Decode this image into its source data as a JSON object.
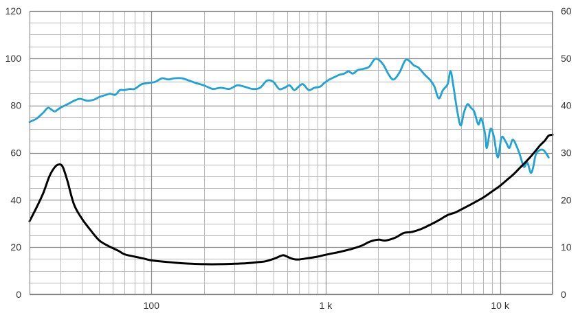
{
  "chart_data": {
    "type": "line",
    "x_scale": "log",
    "xlim": [
      20,
      20000
    ],
    "ylim_left": [
      0,
      120
    ],
    "ylim_right": [
      0,
      60
    ],
    "grid": true,
    "x_tick_labels": [
      {
        "x": 100,
        "label": "100"
      },
      {
        "x": 1000,
        "label": "1 k"
      },
      {
        "x": 10000,
        "label": "10 k"
      }
    ],
    "y_left_ticks": [
      0,
      20,
      40,
      60,
      80,
      100,
      120
    ],
    "y_right_ticks": [
      0,
      10,
      20,
      30,
      40,
      50,
      60
    ],
    "series": [
      {
        "axis": "left",
        "color": "#1fa3d6",
        "points": [
          [
            20,
            73
          ],
          [
            22,
            74.5
          ],
          [
            24,
            77
          ],
          [
            25.5,
            79
          ],
          [
            27,
            78
          ],
          [
            28,
            77.5
          ],
          [
            30,
            79
          ],
          [
            33,
            80.5
          ],
          [
            36,
            82
          ],
          [
            39,
            82.8
          ],
          [
            43,
            82
          ],
          [
            47,
            82.5
          ],
          [
            50,
            83.5
          ],
          [
            55,
            84.5
          ],
          [
            58,
            85
          ],
          [
            62,
            84.5
          ],
          [
            66,
            86.5
          ],
          [
            70,
            86.5
          ],
          [
            75,
            87
          ],
          [
            80,
            87
          ],
          [
            88,
            89
          ],
          [
            95,
            89.5
          ],
          [
            105,
            90
          ],
          [
            115,
            91.5
          ],
          [
            125,
            91
          ],
          [
            135,
            91.5
          ],
          [
            150,
            91.5
          ],
          [
            165,
            90.5
          ],
          [
            180,
            89.5
          ],
          [
            200,
            88.5
          ],
          [
            225,
            87
          ],
          [
            250,
            87.5
          ],
          [
            280,
            87
          ],
          [
            310,
            88.5
          ],
          [
            340,
            88
          ],
          [
            380,
            87
          ],
          [
            420,
            87.5
          ],
          [
            460,
            90.5
          ],
          [
            500,
            90
          ],
          [
            540,
            87
          ],
          [
            580,
            87.5
          ],
          [
            620,
            88.5
          ],
          [
            660,
            86.5
          ],
          [
            700,
            88
          ],
          [
            740,
            89
          ],
          [
            800,
            86.5
          ],
          [
            860,
            87.5
          ],
          [
            930,
            88
          ],
          [
            980,
            89.5
          ],
          [
            1050,
            91
          ],
          [
            1120,
            92
          ],
          [
            1200,
            93
          ],
          [
            1280,
            93.5
          ],
          [
            1350,
            94.5
          ],
          [
            1430,
            93.5
          ],
          [
            1530,
            95
          ],
          [
            1650,
            95.5
          ],
          [
            1780,
            96.5
          ],
          [
            1900,
            99.5
          ],
          [
            2000,
            99.5
          ],
          [
            2150,
            97
          ],
          [
            2300,
            93
          ],
          [
            2450,
            91
          ],
          [
            2650,
            94
          ],
          [
            2850,
            99
          ],
          [
            3000,
            99
          ],
          [
            3200,
            97
          ],
          [
            3400,
            96
          ],
          [
            3700,
            93
          ],
          [
            4000,
            90.5
          ],
          [
            4200,
            88
          ],
          [
            4450,
            83
          ],
          [
            4700,
            86.5
          ],
          [
            5000,
            89
          ],
          [
            5200,
            94.5
          ],
          [
            5400,
            88
          ],
          [
            5700,
            77
          ],
          [
            5950,
            71.5
          ],
          [
            6200,
            77
          ],
          [
            6500,
            80.5
          ],
          [
            6800,
            79
          ],
          [
            7100,
            77.5
          ],
          [
            7500,
            72
          ],
          [
            7800,
            74.5
          ],
          [
            8200,
            68
          ],
          [
            8400,
            62
          ],
          [
            8800,
            70
          ],
          [
            9200,
            67
          ],
          [
            9700,
            58
          ],
          [
            10200,
            66.5
          ],
          [
            10800,
            64.5
          ],
          [
            11300,
            62
          ],
          [
            11800,
            65.5
          ],
          [
            12400,
            63
          ],
          [
            13000,
            59
          ],
          [
            13700,
            54
          ],
          [
            14300,
            56
          ],
          [
            15000,
            51.5
          ],
          [
            15500,
            54
          ],
          [
            16000,
            59
          ],
          [
            16800,
            61
          ],
          [
            17800,
            61
          ],
          [
            19000,
            58
          ]
        ]
      },
      {
        "axis": "right",
        "color": "#000000",
        "points": [
          [
            20,
            15.5
          ],
          [
            22,
            18.5
          ],
          [
            24,
            21.5
          ],
          [
            26,
            25
          ],
          [
            28,
            27
          ],
          [
            29.5,
            27.5
          ],
          [
            31,
            27
          ],
          [
            33,
            24
          ],
          [
            36,
            19
          ],
          [
            40,
            16
          ],
          [
            45,
            13.5
          ],
          [
            50,
            11.5
          ],
          [
            55,
            10.5
          ],
          [
            60,
            9.8
          ],
          [
            65,
            9.2
          ],
          [
            70,
            8.5
          ],
          [
            80,
            8
          ],
          [
            90,
            7.6
          ],
          [
            100,
            7.2
          ],
          [
            120,
            6.9
          ],
          [
            150,
            6.6
          ],
          [
            200,
            6.4
          ],
          [
            250,
            6.4
          ],
          [
            300,
            6.5
          ],
          [
            350,
            6.6
          ],
          [
            400,
            6.8
          ],
          [
            450,
            7
          ],
          [
            500,
            7.5
          ],
          [
            540,
            8
          ],
          [
            570,
            8.3
          ],
          [
            600,
            8
          ],
          [
            650,
            7.5
          ],
          [
            700,
            7.4
          ],
          [
            800,
            7.7
          ],
          [
            900,
            8
          ],
          [
            1000,
            8.4
          ],
          [
            1200,
            9
          ],
          [
            1400,
            9.6
          ],
          [
            1600,
            10.3
          ],
          [
            1800,
            11.2
          ],
          [
            2000,
            11.6
          ],
          [
            2200,
            11.4
          ],
          [
            2500,
            12
          ],
          [
            2800,
            13
          ],
          [
            3100,
            13.2
          ],
          [
            3500,
            13.8
          ],
          [
            4000,
            14.8
          ],
          [
            4500,
            15.8
          ],
          [
            5000,
            16.8
          ],
          [
            5500,
            17.3
          ],
          [
            6000,
            18
          ],
          [
            7000,
            19.3
          ],
          [
            8000,
            20.5
          ],
          [
            9000,
            21.8
          ],
          [
            10000,
            23
          ],
          [
            11000,
            24.3
          ],
          [
            12000,
            25.5
          ],
          [
            13000,
            26.8
          ],
          [
            14000,
            28
          ],
          [
            15000,
            29.2
          ],
          [
            16000,
            30.4
          ],
          [
            17000,
            31.6
          ],
          [
            18000,
            32.5
          ],
          [
            19000,
            33.6
          ],
          [
            20000,
            33.8
          ]
        ]
      }
    ]
  }
}
